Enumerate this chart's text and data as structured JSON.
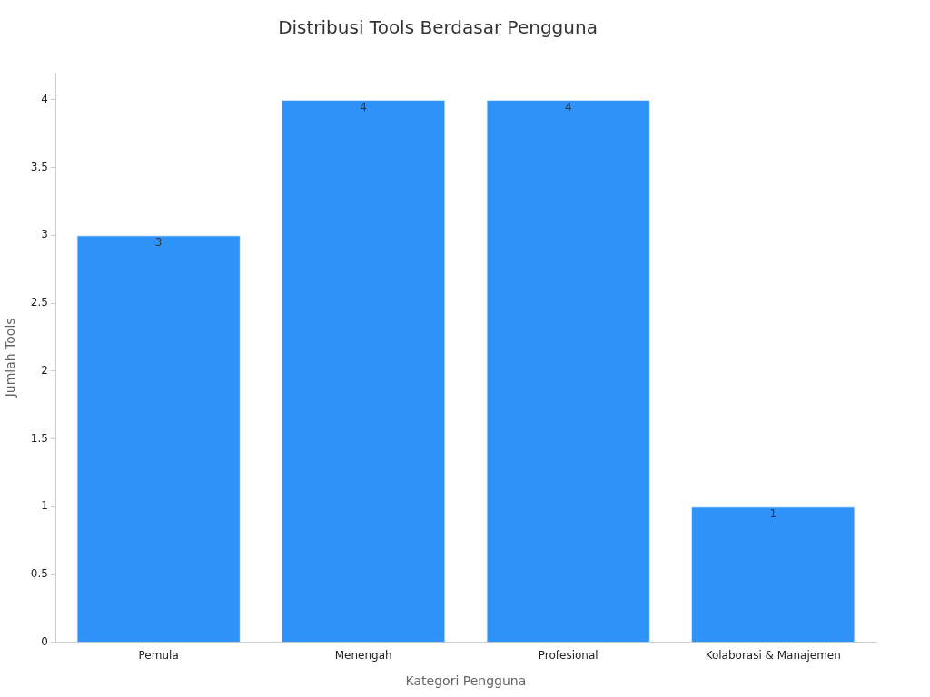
{
  "chart_data": {
    "type": "bar",
    "title": "Distribusi Tools Berdasar Pengguna",
    "xlabel": "Kategori Pengguna",
    "ylabel": "Jumlah Tools",
    "categories": [
      "Pemula",
      "Menengah",
      "Profesional",
      "Kolaborasi & Manajemen"
    ],
    "values": [
      3,
      4,
      4,
      1
    ],
    "color": "#2f92f8",
    "ylim": [
      0,
      4.2
    ],
    "yticks": [
      0,
      0.5,
      1,
      1.5,
      2,
      2.5,
      3,
      3.5,
      4
    ],
    "grid": false,
    "legend": false,
    "data_labels": true
  }
}
